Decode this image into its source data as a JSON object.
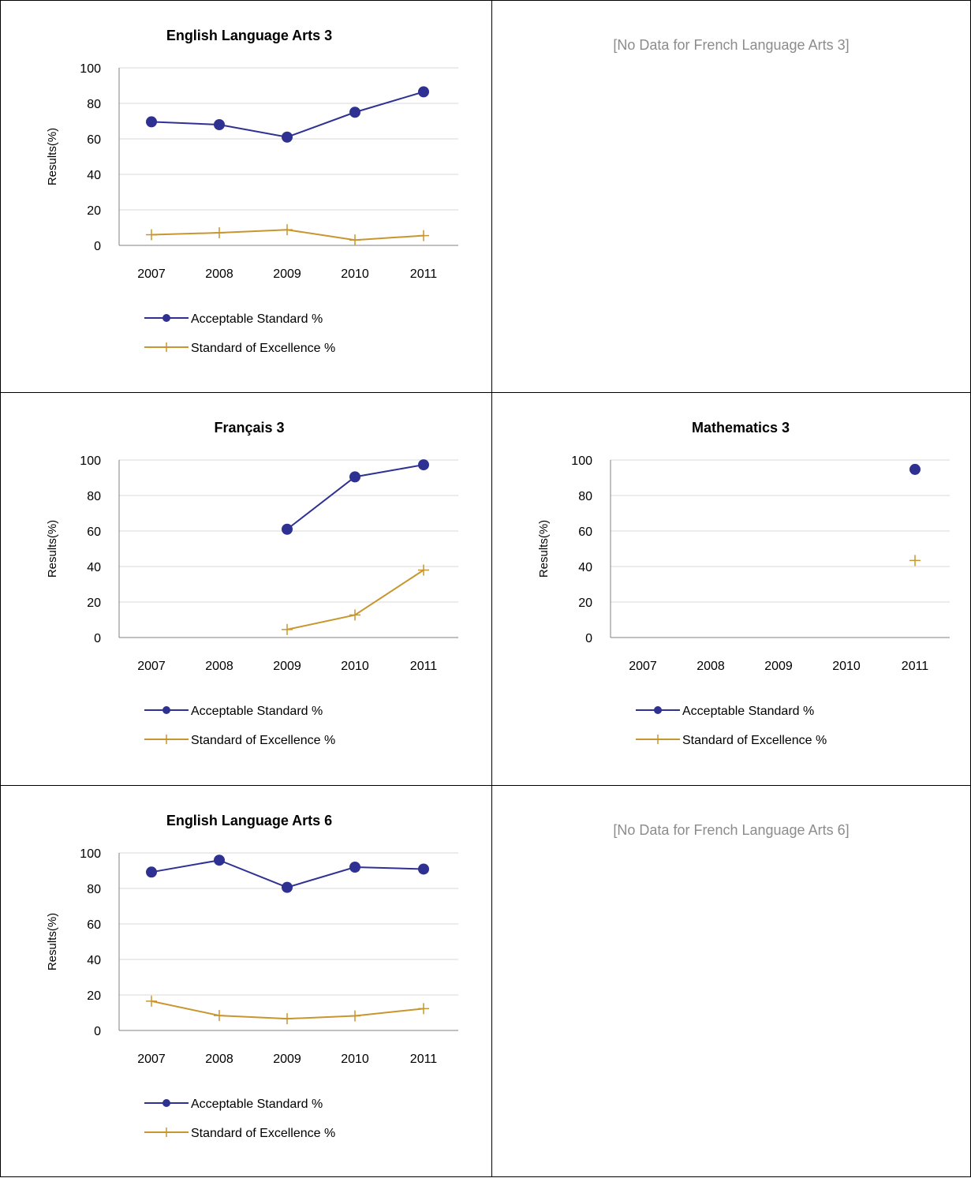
{
  "colors": {
    "acceptable": "#2e3192",
    "excellence": "#c8962e",
    "grid": "#d9d9d9",
    "axis": "#808080",
    "nodata": "#8c8c8c"
  },
  "panels": [
    {
      "kind": "chart",
      "title": "English Language Arts 3",
      "ylabel": "Results(%)",
      "ylim": [
        0,
        100
      ],
      "yticks": [
        "0",
        "20",
        "40",
        "60",
        "80",
        "100"
      ],
      "categories": [
        "2007",
        "2008",
        "2009",
        "2010",
        "2011"
      ],
      "series": [
        {
          "name": "Acceptable Standard %",
          "marker": "circle",
          "values": [
            69.6,
            68.0,
            61.0,
            75.0,
            86.5
          ]
        },
        {
          "name": "Standard of Excellence %",
          "marker": "plus",
          "values": [
            6.0,
            7.1,
            8.8,
            3.0,
            5.5
          ]
        }
      ]
    },
    {
      "kind": "nodata",
      "message": "[No Data for French Language Arts 3]"
    },
    {
      "kind": "chart",
      "title": "Français 3",
      "ylabel": "Results(%)",
      "ylim": [
        0,
        100
      ],
      "yticks": [
        "0",
        "20",
        "40",
        "60",
        "80",
        "100"
      ],
      "categories": [
        "2007",
        "2008",
        "2009",
        "2010",
        "2011"
      ],
      "series": [
        {
          "name": "Acceptable Standard %",
          "marker": "circle",
          "values": [
            null,
            null,
            61.0,
            90.5,
            97.3
          ]
        },
        {
          "name": "Standard of Excellence %",
          "marker": "plus",
          "values": [
            null,
            null,
            4.5,
            12.7,
            38.0
          ]
        }
      ]
    },
    {
      "kind": "chart",
      "title": "Mathematics 3",
      "ylabel": "Results(%)",
      "ylim": [
        0,
        100
      ],
      "yticks": [
        "0",
        "20",
        "40",
        "60",
        "80",
        "100"
      ],
      "categories": [
        "2007",
        "2008",
        "2009",
        "2010",
        "2011"
      ],
      "series": [
        {
          "name": "Acceptable Standard %",
          "marker": "circle",
          "values": [
            null,
            null,
            null,
            null,
            94.7
          ]
        },
        {
          "name": "Standard of Excellence %",
          "marker": "plus",
          "values": [
            null,
            null,
            null,
            null,
            43.4
          ]
        }
      ]
    },
    {
      "kind": "chart",
      "title": "English Language Arts 6",
      "ylabel": "Results(%)",
      "ylim": [
        0,
        100
      ],
      "yticks": [
        "0",
        "20",
        "40",
        "60",
        "80",
        "100"
      ],
      "categories": [
        "2007",
        "2008",
        "2009",
        "2010",
        "2011"
      ],
      "series": [
        {
          "name": "Acceptable Standard %",
          "marker": "circle",
          "values": [
            89.2,
            95.9,
            80.6,
            92.0,
            90.9
          ]
        },
        {
          "name": "Standard of Excellence %",
          "marker": "plus",
          "values": [
            16.5,
            8.4,
            6.6,
            8.2,
            12.3
          ]
        }
      ]
    },
    {
      "kind": "nodata",
      "message": "[No Data for French Language Arts 6]"
    }
  ],
  "chart_data": [
    {
      "type": "line",
      "title": "English Language Arts 3",
      "xlabel": "",
      "ylabel": "Results(%)",
      "ylim": [
        0,
        100
      ],
      "grid": true,
      "legend": "bottom",
      "categories": [
        "2007",
        "2008",
        "2009",
        "2010",
        "2011"
      ],
      "series": [
        {
          "name": "Acceptable Standard %",
          "values": [
            69.6,
            68.0,
            61.0,
            75.0,
            86.5
          ]
        },
        {
          "name": "Standard of Excellence %",
          "values": [
            6.0,
            7.1,
            8.8,
            3.0,
            5.5
          ]
        }
      ]
    },
    {
      "type": "line",
      "title": "Français 3",
      "xlabel": "",
      "ylabel": "Results(%)",
      "ylim": [
        0,
        100
      ],
      "grid": true,
      "legend": "bottom",
      "categories": [
        "2007",
        "2008",
        "2009",
        "2010",
        "2011"
      ],
      "series": [
        {
          "name": "Acceptable Standard %",
          "values": [
            null,
            null,
            61.0,
            90.5,
            97.3
          ]
        },
        {
          "name": "Standard of Excellence %",
          "values": [
            null,
            null,
            4.5,
            12.7,
            38.0
          ]
        }
      ]
    },
    {
      "type": "line",
      "title": "Mathematics 3",
      "xlabel": "",
      "ylabel": "Results(%)",
      "ylim": [
        0,
        100
      ],
      "grid": true,
      "legend": "bottom",
      "categories": [
        "2007",
        "2008",
        "2009",
        "2010",
        "2011"
      ],
      "series": [
        {
          "name": "Acceptable Standard %",
          "values": [
            null,
            null,
            null,
            null,
            94.7
          ]
        },
        {
          "name": "Standard of Excellence %",
          "values": [
            null,
            null,
            null,
            null,
            43.4
          ]
        }
      ]
    },
    {
      "type": "line",
      "title": "English Language Arts 6",
      "xlabel": "",
      "ylabel": "Results(%)",
      "ylim": [
        0,
        100
      ],
      "grid": true,
      "legend": "bottom",
      "categories": [
        "2007",
        "2008",
        "2009",
        "2010",
        "2011"
      ],
      "series": [
        {
          "name": "Acceptable Standard %",
          "values": [
            89.2,
            95.9,
            80.6,
            92.0,
            90.9
          ]
        },
        {
          "name": "Standard of Excellence %",
          "values": [
            16.5,
            8.4,
            6.6,
            8.2,
            12.3
          ]
        }
      ]
    }
  ]
}
